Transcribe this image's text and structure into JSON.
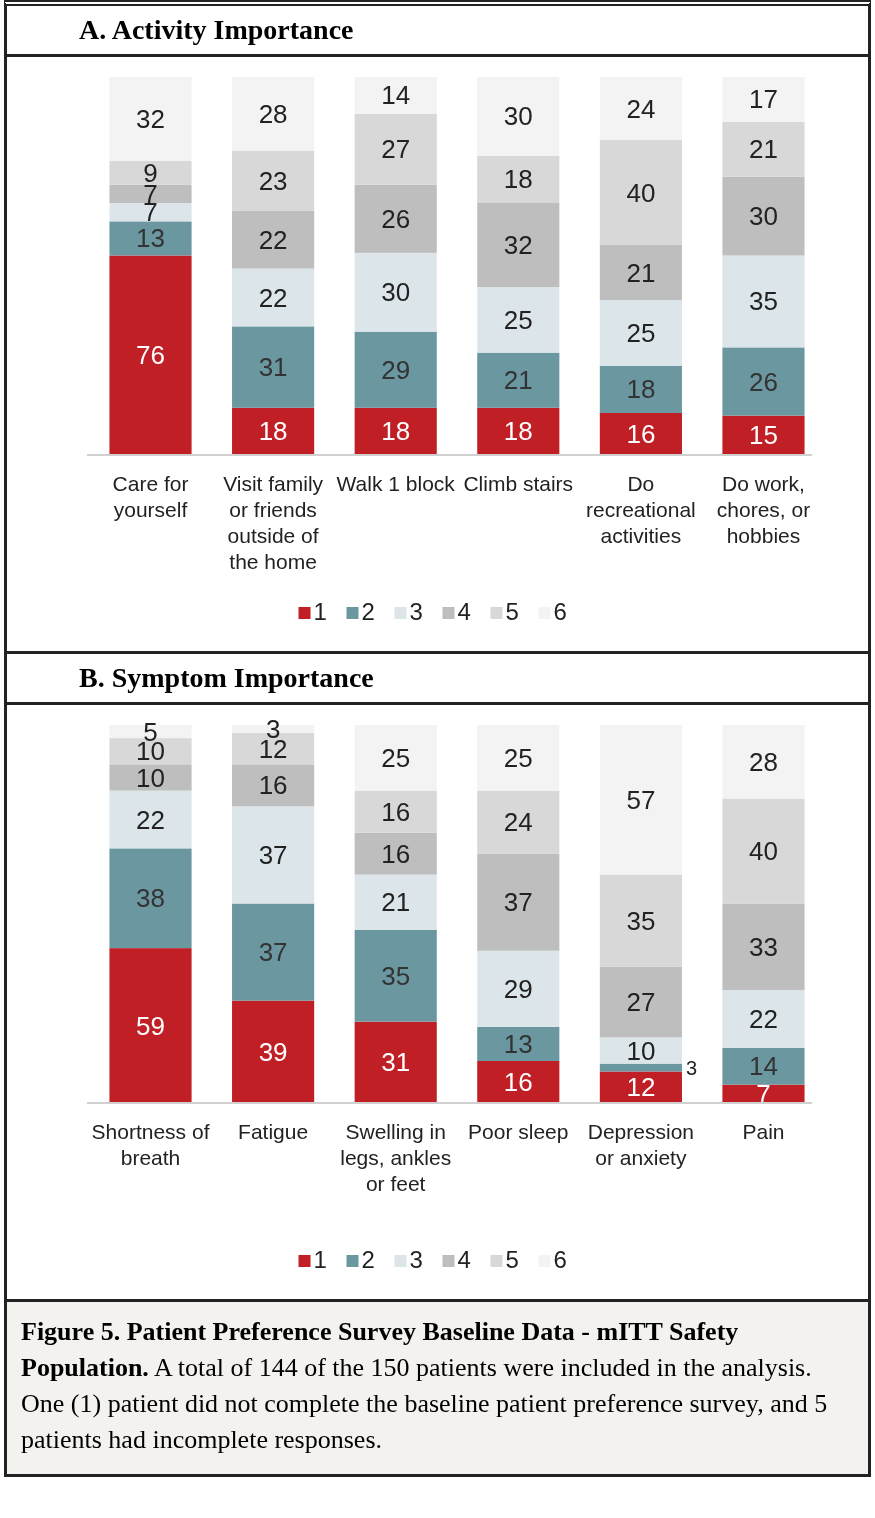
{
  "chart_data": [
    {
      "type": "bar",
      "title": "A. Activity Importance",
      "stacked": true,
      "data_labels": true,
      "legend": "bottom",
      "categories": [
        "Care for yourself",
        "Visit family or friends outside of the home",
        "Walk 1 block",
        "Climb stairs",
        "Do recreational activities",
        "Do work, chores, or hobbies"
      ],
      "series": [
        {
          "name": "1",
          "color": "#c01f26",
          "values": [
            76,
            18,
            18,
            18,
            16,
            15
          ]
        },
        {
          "name": "2",
          "color": "#6b97a1",
          "values": [
            13,
            31,
            29,
            21,
            18,
            26
          ]
        },
        {
          "name": "3",
          "color": "#dce6ea",
          "values": [
            7,
            22,
            30,
            25,
            25,
            35
          ]
        },
        {
          "name": "4",
          "color": "#bebebe",
          "values": [
            7,
            22,
            26,
            32,
            21,
            30
          ]
        },
        {
          "name": "5",
          "color": "#d8d8d8",
          "values": [
            9,
            23,
            27,
            18,
            40,
            21
          ]
        },
        {
          "name": "6",
          "color": "#f3f3f4",
          "values": [
            32,
            28,
            14,
            30,
            24,
            17
          ]
        }
      ]
    },
    {
      "type": "bar",
      "title": "B. Symptom Importance",
      "stacked": true,
      "data_labels": true,
      "legend": "bottom",
      "categories": [
        "Shortness of breath",
        "Fatigue",
        "Swelling in legs, ankles or feet",
        "Poor sleep",
        "Depression or anxiety",
        "Pain"
      ],
      "series": [
        {
          "name": "1",
          "color": "#c01f26",
          "values": [
            59,
            39,
            31,
            16,
            12,
            7
          ]
        },
        {
          "name": "2",
          "color": "#6b97a1",
          "values": [
            38,
            37,
            35,
            13,
            3,
            14
          ]
        },
        {
          "name": "3",
          "color": "#dce6ea",
          "values": [
            22,
            37,
            21,
            29,
            10,
            22
          ]
        },
        {
          "name": "4",
          "color": "#bebebe",
          "values": [
            10,
            16,
            16,
            37,
            27,
            33
          ]
        },
        {
          "name": "5",
          "color": "#d8d8d8",
          "values": [
            10,
            12,
            16,
            24,
            35,
            40
          ]
        },
        {
          "name": "6",
          "color": "#f3f3f4",
          "values": [
            5,
            3,
            25,
            25,
            57,
            28
          ]
        }
      ],
      "annotations": [
        "Figure 5. Patient Preference Survey Baseline Data - mITT Safety Population.",
        "A total of 144 of the 150 patients were included in the analysis. One (1) patient did not complete the baseline patient preference survey, and 5 patients had incomplete responses."
      ]
    }
  ]
}
